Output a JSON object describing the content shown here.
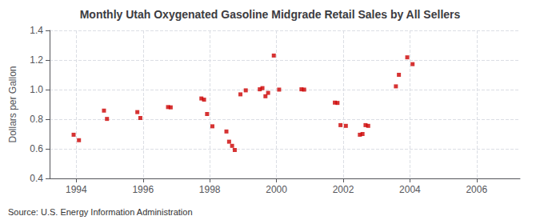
{
  "chart_data": {
    "type": "scatter",
    "title": "Monthly Utah Oxygenated Gasoline Midgrade Retail Sales by All Sellers",
    "y_label": "Dollars per Gallon",
    "annotations": [
      "Source: U.S. Energy Information Administration"
    ],
    "color": "#cc0000",
    "marker": "square",
    "grid": true,
    "xlim": [
      1993.2,
      2007.3
    ],
    "ylim": [
      0.4,
      1.4
    ],
    "xticks": [
      1994,
      1996,
      1998,
      2000,
      2002,
      2004,
      2006
    ],
    "yticks": [
      0.4,
      0.6,
      0.8,
      {
        "value": 1.0,
        "label": "1.0"
      },
      1.2,
      1.4
    ],
    "x": [
      1993.92,
      1994.08,
      1994.83,
      1994.92,
      1995.83,
      1995.92,
      1996.75,
      1996.83,
      1997.75,
      1997.83,
      1997.92,
      1998.08,
      1998.5,
      1998.58,
      1998.67,
      1998.75,
      1998.92,
      1999.08,
      1999.5,
      1999.58,
      1999.67,
      1999.75,
      1999.92,
      2000.08,
      2000.75,
      2000.83,
      2001.75,
      2001.83,
      2001.92,
      2002.08,
      2002.5,
      2002.58,
      2002.67,
      2002.75,
      2003.58,
      2003.67,
      2003.92,
      2004.08
    ],
    "values": [
      0.695,
      0.658,
      0.858,
      0.802,
      0.848,
      0.808,
      0.882,
      0.88,
      0.94,
      0.932,
      0.835,
      0.752,
      0.717,
      0.648,
      0.62,
      0.592,
      0.968,
      0.995,
      1.002,
      1.01,
      0.955,
      0.978,
      1.23,
      1.0,
      1.002,
      1.0,
      0.912,
      0.91,
      0.76,
      0.755,
      0.695,
      0.7,
      0.76,
      0.755,
      1.022,
      1.1,
      1.218,
      1.172
    ]
  }
}
